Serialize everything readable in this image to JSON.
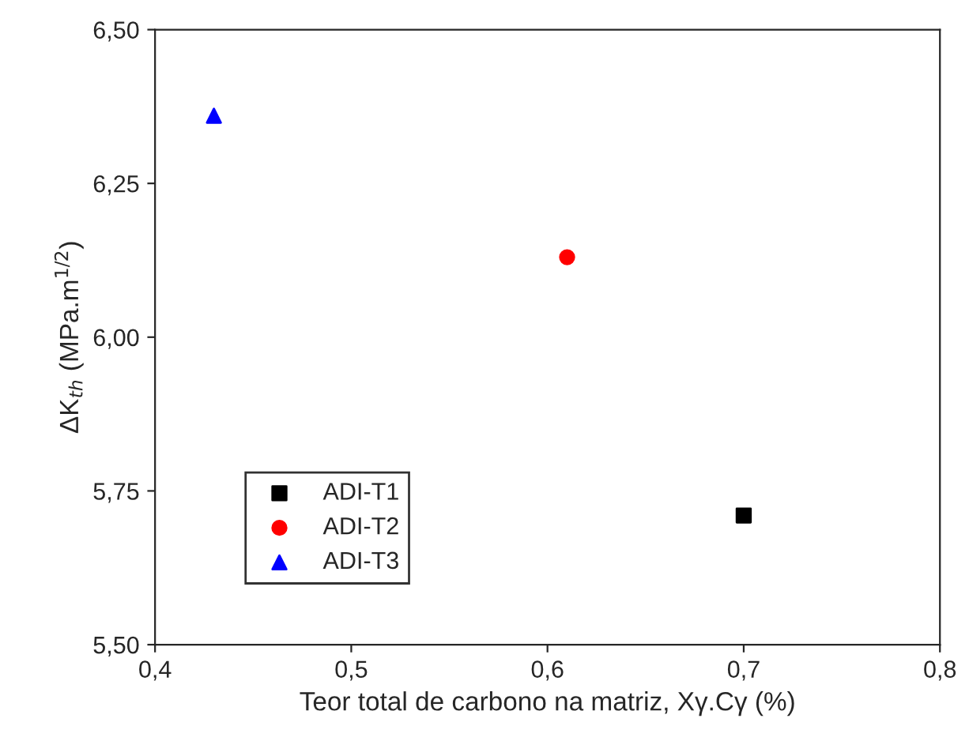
{
  "chart_data": {
    "type": "scatter",
    "xlabel": "Teor total de carbono na matriz, Xγ.Cγ (%)",
    "ylabel": "ΔK$_{th}$ (MPa.m$^{1/2}$)",
    "xlim": [
      0.4,
      0.8
    ],
    "xticks": [
      {
        "value": 0.4,
        "label": "0,4"
      },
      {
        "value": 0.5,
        "label": "0,5"
      },
      {
        "value": 0.6,
        "label": "0,6"
      },
      {
        "value": 0.7,
        "label": "0,7"
      },
      {
        "value": 0.8,
        "label": "0,8"
      }
    ],
    "ylim": [
      5.5,
      6.5
    ],
    "yticks": [
      {
        "value": 5.5,
        "label": "5,50"
      },
      {
        "value": 5.75,
        "label": "5,75"
      },
      {
        "value": 6.0,
        "label": "6,00"
      },
      {
        "value": 6.25,
        "label": "6,25"
      },
      {
        "value": 6.5,
        "label": "6,50"
      }
    ],
    "legend": "bottom left",
    "grid": false,
    "series": [
      {
        "name": "ADI-T1",
        "color": "#000000",
        "marker": "square",
        "x": [
          0.7
        ],
        "values": [
          5.71
        ]
      },
      {
        "name": "ADI-T2",
        "color": "#ff0000",
        "marker": "circle",
        "x": [
          0.61
        ],
        "values": [
          6.13
        ]
      },
      {
        "name": "ADI-T3",
        "color": "#0000ff",
        "marker": "triangle",
        "x": [
          0.43
        ],
        "values": [
          6.36
        ]
      }
    ]
  }
}
